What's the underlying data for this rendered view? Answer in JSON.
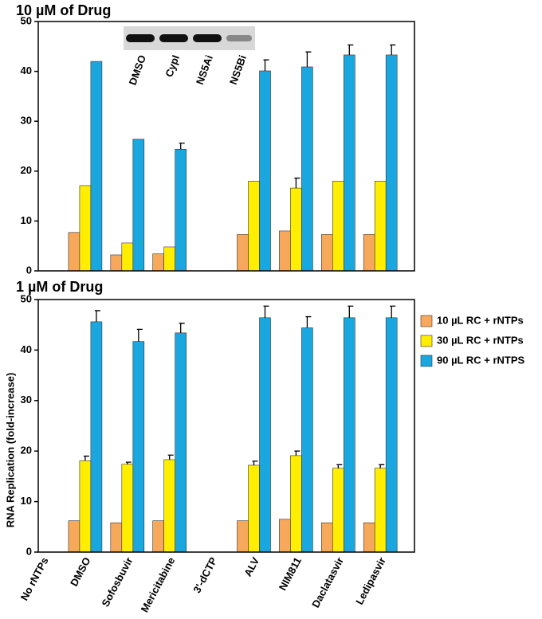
{
  "y_label": "RNA Replication (fold-increase)",
  "chart_data": [
    {
      "type": "bar",
      "title": "10 µM of Drug",
      "blot_labels": [
        "DMSO",
        "CypI",
        "NS5Ai",
        "NS5Bi"
      ],
      "ylim": [
        0,
        50
      ],
      "yticks": [
        0,
        10,
        20,
        30,
        40,
        50
      ],
      "series": [
        {
          "color": "#f7a95b",
          "values": [
            0,
            7.7,
            3.2,
            3.4,
            0,
            7.3,
            8.0,
            7.3,
            7.3
          ],
          "errors": [
            null,
            null,
            null,
            null,
            null,
            null,
            null,
            null,
            null
          ]
        },
        {
          "color": "#ffee00",
          "values": [
            0,
            17.1,
            5.6,
            4.8,
            0,
            18.0,
            16.6,
            18.0,
            18.0
          ],
          "errors": [
            null,
            null,
            null,
            null,
            null,
            null,
            2.0,
            null,
            null
          ]
        },
        {
          "color": "#1aa7e0",
          "values": [
            0,
            42.0,
            26.4,
            24.4,
            0,
            40.1,
            40.9,
            43.3,
            43.3
          ],
          "errors": [
            null,
            null,
            null,
            1.2,
            null,
            2.2,
            3.0,
            2.0,
            2.0
          ]
        }
      ]
    },
    {
      "type": "bar",
      "title": "1 µM of Drug",
      "categories": [
        "No rNTPs",
        "DMSO",
        "Sofosbuvir",
        "Mericitabine",
        "3'-dCTP",
        "ALV",
        "NIM811",
        "Daclatasvir",
        "Ledipasvir"
      ],
      "ylim": [
        0,
        50
      ],
      "yticks": [
        0,
        10,
        20,
        30,
        40,
        50
      ],
      "legend": "right",
      "series": [
        {
          "name": "10 µL RC + rNTPs",
          "color": "#f7a95b",
          "values": [
            0,
            6.2,
            5.8,
            6.2,
            0,
            6.2,
            6.5,
            5.8,
            5.8
          ],
          "errors": [
            null,
            null,
            null,
            null,
            null,
            null,
            null,
            null,
            null
          ]
        },
        {
          "name": "30 µL RC + rNTPs",
          "color": "#ffee00",
          "values": [
            0,
            18.1,
            17.4,
            18.3,
            0,
            17.2,
            19.1,
            16.6,
            16.6
          ],
          "errors": [
            null,
            0.9,
            0.4,
            0.9,
            null,
            0.8,
            0.9,
            0.7,
            0.7
          ]
        },
        {
          "name": "90 µL RC + rNTPS",
          "color": "#1aa7e0",
          "values": [
            0,
            45.6,
            41.7,
            43.4,
            0,
            46.4,
            44.4,
            46.4,
            46.4
          ],
          "errors": [
            null,
            2.2,
            2.4,
            1.9,
            null,
            2.3,
            2.2,
            2.3,
            2.3
          ]
        }
      ]
    }
  ]
}
